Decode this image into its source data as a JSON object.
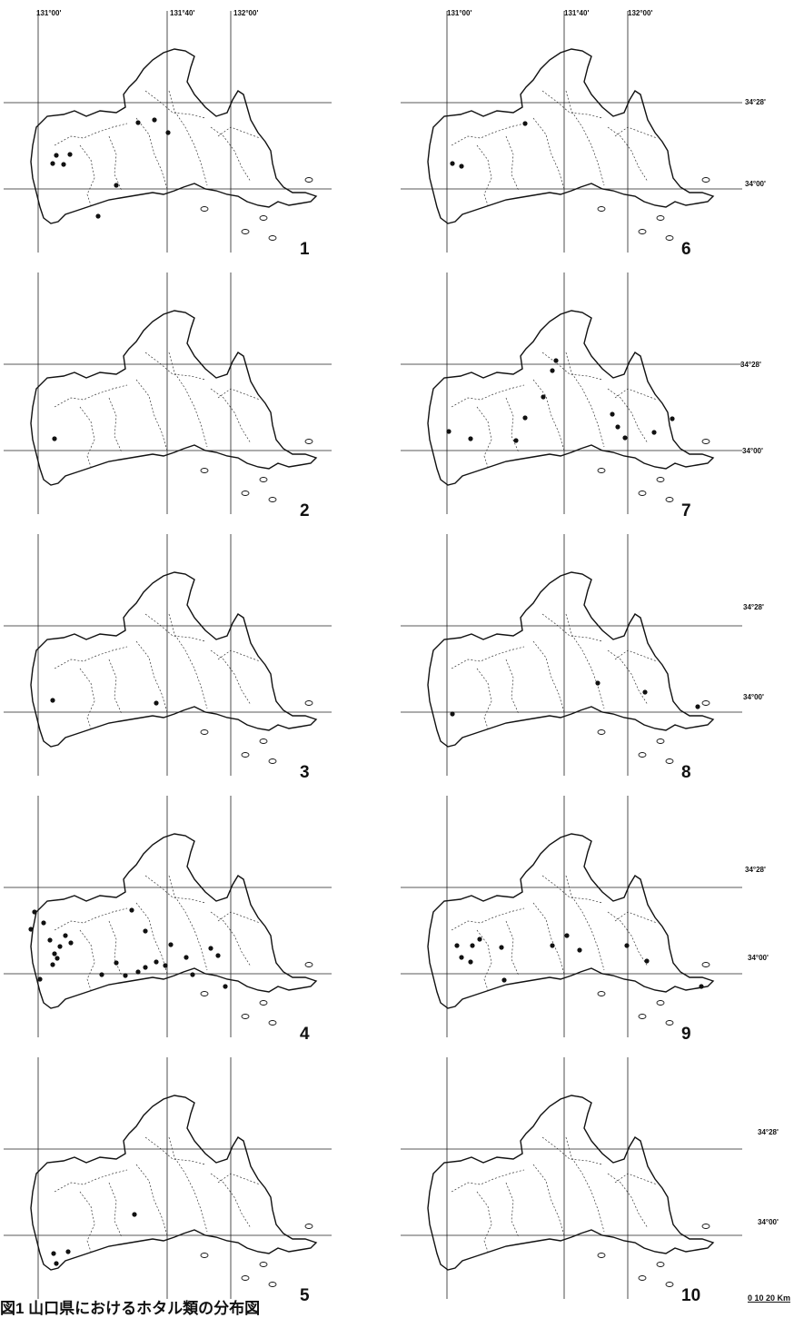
{
  "figure": {
    "caption": "図1 山口県におけるホタル類の分布図",
    "scale": {
      "label": "0 10 20 Km"
    },
    "longitude_labels": [
      "131°00'",
      "131°40'",
      "132°00'"
    ],
    "latitude_labels": [
      "34°28'",
      "34°00'"
    ]
  },
  "panels": [
    {
      "number": "1",
      "dots": [
        [
          62,
          171
        ],
        [
          58,
          180
        ],
        [
          70,
          181
        ],
        [
          77,
          170
        ],
        [
          152,
          135
        ],
        [
          170,
          132
        ],
        [
          185,
          146
        ],
        [
          128,
          204
        ],
        [
          108,
          238
        ]
      ]
    },
    {
      "number": "2",
      "dots": [
        [
          60,
          483
        ]
      ]
    },
    {
      "number": "3",
      "dots": [
        [
          58,
          771
        ],
        [
          172,
          774
        ]
      ]
    },
    {
      "number": "4",
      "dots": [
        [
          38,
          1004
        ],
        [
          34,
          1023
        ],
        [
          48,
          1016
        ],
        [
          55,
          1035
        ],
        [
          60,
          1050
        ],
        [
          66,
          1042
        ],
        [
          72,
          1030
        ],
        [
          78,
          1038
        ],
        [
          63,
          1055
        ],
        [
          44,
          1078
        ],
        [
          58,
          1062
        ],
        [
          112,
          1073
        ],
        [
          138,
          1074
        ],
        [
          128,
          1060
        ],
        [
          152,
          1070
        ],
        [
          160,
          1065
        ],
        [
          172,
          1059
        ],
        [
          182,
          1063
        ],
        [
          188,
          1040
        ],
        [
          205,
          1054
        ],
        [
          212,
          1073
        ],
        [
          232,
          1044
        ],
        [
          240,
          1052
        ],
        [
          248,
          1086
        ],
        [
          145,
          1002
        ],
        [
          160,
          1025
        ]
      ]
    },
    {
      "number": "5",
      "dots": [
        [
          59,
          1380
        ],
        [
          75,
          1378
        ],
        [
          62,
          1391
        ],
        [
          148,
          1337
        ]
      ]
    },
    {
      "number": "6",
      "dots": [
        [
          498,
          180
        ],
        [
          508,
          183
        ],
        [
          578,
          136
        ]
      ]
    },
    {
      "number": "7",
      "dots": [
        [
          494,
          475
        ],
        [
          518,
          483
        ],
        [
          568,
          485
        ],
        [
          578,
          460
        ],
        [
          598,
          437
        ],
        [
          608,
          408
        ],
        [
          612,
          397
        ],
        [
          674,
          456
        ],
        [
          680,
          470
        ],
        [
          688,
          482
        ],
        [
          720,
          476
        ],
        [
          740,
          461
        ]
      ]
    },
    {
      "number": "8",
      "dots": [
        [
          498,
          786
        ],
        [
          658,
          752
        ],
        [
          710,
          762
        ],
        [
          768,
          778
        ]
      ]
    },
    {
      "number": "9",
      "dots": [
        [
          503,
          1041
        ],
        [
          508,
          1054
        ],
        [
          518,
          1059
        ],
        [
          520,
          1041
        ],
        [
          528,
          1034
        ],
        [
          552,
          1043
        ],
        [
          608,
          1041
        ],
        [
          624,
          1030
        ],
        [
          638,
          1046
        ],
        [
          690,
          1041
        ],
        [
          712,
          1058
        ],
        [
          772,
          1086
        ],
        [
          555,
          1079
        ]
      ]
    },
    {
      "number": "10",
      "dots": []
    }
  ]
}
